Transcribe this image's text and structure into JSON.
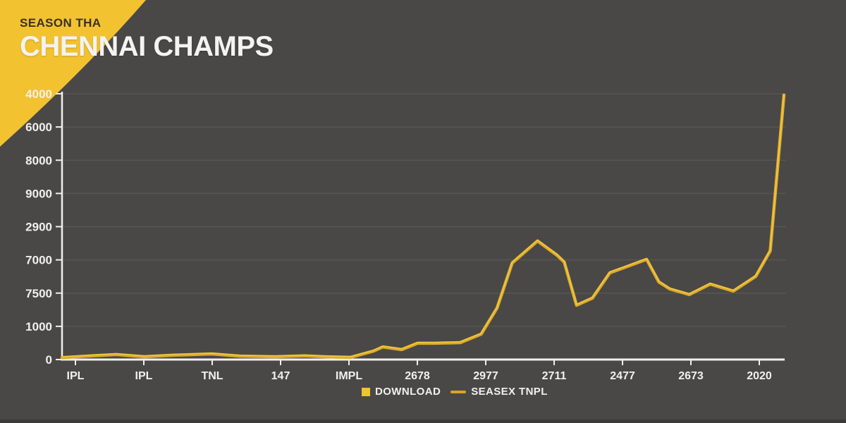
{
  "header": {
    "kicker": "SEASON THA",
    "title": "CHENNAI CHAMPS"
  },
  "legend": {
    "items": [
      {
        "label": "DOWNLOAD",
        "swatch": "square"
      },
      {
        "label": "SEASEX TNPL",
        "swatch": "line"
      }
    ]
  },
  "colors": {
    "background": "#4a4846",
    "accent_yellow": "#f3c230",
    "line_gold": "#dcab29",
    "line_highlight": "#f4d04f",
    "axis_white": "#f0efed",
    "gridline": "rgba(255,255,255,0.08)",
    "kicker_text": "#3a3126",
    "label_text": "#f1f0ee"
  },
  "chart_data": {
    "type": "line",
    "title": "",
    "xlabel": "",
    "ylabel": "",
    "grid": "horizontal",
    "legend_position": "bottom-center",
    "x_tick_labels": [
      "IPL",
      "IPL",
      "TNL",
      "147",
      "IMPL",
      "2678",
      "2977",
      "2711",
      "2477",
      "2673",
      "2020"
    ],
    "y_tick_labels_bottom_to_top": [
      "0",
      "1000",
      "7500",
      "7000",
      "2900",
      "9000",
      "8000",
      "6000",
      "4000"
    ],
    "y_axis_note": "tick labels shown as rendered (non-sequential); plotted values use an even scale of 1000 units per gridline, 0 at bottom to 8000 at top",
    "ylim": [
      0,
      8000
    ],
    "series": [
      {
        "name": "SEASEX TNPL",
        "color": "#dcab29",
        "points": [
          [
            0.0,
            60
          ],
          [
            0.041,
            110
          ],
          [
            0.075,
            150
          ],
          [
            0.114,
            85
          ],
          [
            0.153,
            130
          ],
          [
            0.207,
            170
          ],
          [
            0.246,
            105
          ],
          [
            0.295,
            85
          ],
          [
            0.336,
            110
          ],
          [
            0.363,
            85
          ],
          [
            0.399,
            65
          ],
          [
            0.431,
            255
          ],
          [
            0.444,
            380
          ],
          [
            0.47,
            300
          ],
          [
            0.492,
            490
          ],
          [
            0.516,
            490
          ],
          [
            0.551,
            510
          ],
          [
            0.58,
            765
          ],
          [
            0.602,
            1550
          ],
          [
            0.623,
            2910
          ],
          [
            0.658,
            3570
          ],
          [
            0.685,
            3140
          ],
          [
            0.695,
            2930
          ],
          [
            0.712,
            1635
          ],
          [
            0.734,
            1850
          ],
          [
            0.758,
            2610
          ],
          [
            0.809,
            3015
          ],
          [
            0.826,
            2335
          ],
          [
            0.841,
            2125
          ],
          [
            0.868,
            1955
          ],
          [
            0.897,
            2270
          ],
          [
            0.929,
            2060
          ],
          [
            0.96,
            2505
          ],
          [
            0.98,
            3270
          ],
          [
            0.999,
            7960
          ]
        ]
      }
    ]
  }
}
